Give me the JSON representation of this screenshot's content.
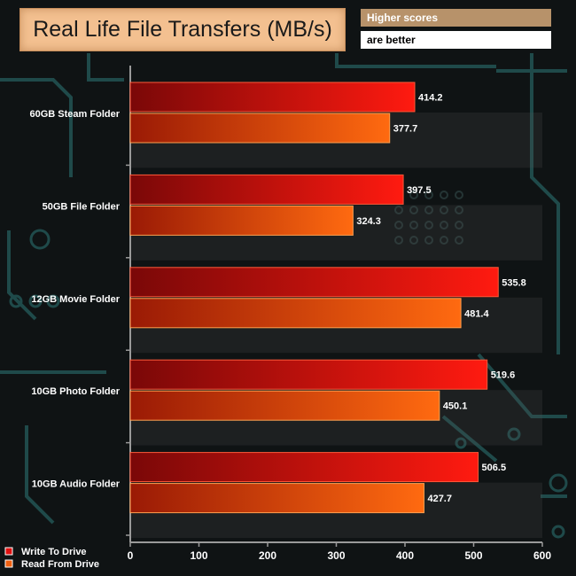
{
  "chart_data": {
    "type": "bar",
    "orientation": "horizontal",
    "title": "Real Life File Transfers (MB/s)",
    "categories": [
      "60GB Steam Folder",
      "50GB File Folder",
      "12GB Movie Folder",
      "10GB Photo Folder",
      "10GB Audio Folder"
    ],
    "series": [
      {
        "name": "Write To  Drive",
        "values": [
          414.2,
          397.5,
          535.8,
          519.6,
          506.5
        ],
        "color": "#e01010"
      },
      {
        "name": "Read From  Drive",
        "values": [
          377.7,
          324.3,
          481.4,
          450.1,
          427.7
        ],
        "color": "#f06010"
      }
    ],
    "value_labels": [
      [
        "414.2",
        "397.5",
        "535.8",
        "519.6",
        "506.5"
      ],
      [
        "377.7",
        "324.3",
        "481.4",
        "450.1",
        "427.7"
      ]
    ],
    "xlim": [
      0,
      600
    ],
    "xticks": [
      "0",
      "100",
      "200",
      "300",
      "400",
      "500",
      "600"
    ],
    "xtick_values": [
      0,
      100,
      200,
      300,
      400,
      500,
      600
    ],
    "grid": false,
    "legend_position": "bottom-left"
  },
  "header": {
    "title": "Real Life File Transfers (MB/s)",
    "note_line1": "Higher scores",
    "note_line2": "are better"
  },
  "colors": {
    "background": "#0f1314",
    "title_box": "#f3c090",
    "note_top": "#b7926a",
    "axis": "#9a9a9a"
  }
}
